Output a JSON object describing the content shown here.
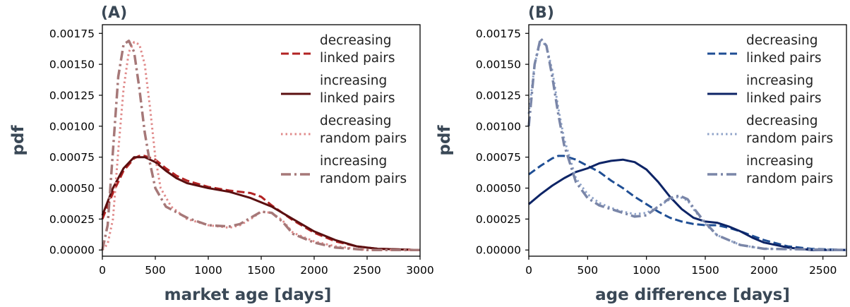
{
  "chart_data": [
    {
      "type": "line",
      "panel_label": "(A)",
      "title": "",
      "xlabel": "market age [days]",
      "ylabel": "pdf",
      "xlim": [
        0,
        3000
      ],
      "ylim": [
        -5e-05,
        0.00182
      ],
      "xticks": [
        "0",
        "500",
        "1000",
        "1500",
        "2000",
        "2500",
        "3000"
      ],
      "yticks": [
        "0.00000",
        "0.00025",
        "0.00050",
        "0.00075",
        "0.00100",
        "0.00125",
        "0.00150",
        "0.00175"
      ],
      "legend_position": "upper-right",
      "series": [
        {
          "legend_line1": "decreasing",
          "legend_line2": "linked pairs",
          "color": "#b22222",
          "dash": "dashed",
          "width": 3,
          "opacity": 1,
          "points": [
            [
              0,
              0.00025
            ],
            [
              100,
              0.00046
            ],
            [
              200,
              0.00064
            ],
            [
              300,
              0.00074
            ],
            [
              350,
              0.00076
            ],
            [
              400,
              0.00076
            ],
            [
              500,
              0.00073
            ],
            [
              600,
              0.00066
            ],
            [
              700,
              0.0006
            ],
            [
              800,
              0.00056
            ],
            [
              1000,
              0.00051
            ],
            [
              1200,
              0.00048
            ],
            [
              1400,
              0.00046
            ],
            [
              1500,
              0.00043
            ],
            [
              1600,
              0.00036
            ],
            [
              1800,
              0.00024
            ],
            [
              2000,
              0.00014
            ],
            [
              2200,
              7e-05
            ],
            [
              2400,
              3e-05
            ],
            [
              2600,
              1e-05
            ],
            [
              3000,
              0.0
            ]
          ]
        },
        {
          "legend_line1": "increasing",
          "legend_line2": "linked pairs",
          "color": "#5b0f10",
          "dash": "solid",
          "width": 3,
          "opacity": 1,
          "points": [
            [
              0,
              0.00028
            ],
            [
              100,
              0.0005
            ],
            [
              200,
              0.00066
            ],
            [
              300,
              0.00075
            ],
            [
              400,
              0.00075
            ],
            [
              500,
              0.00071
            ],
            [
              600,
              0.00064
            ],
            [
              700,
              0.00058
            ],
            [
              800,
              0.00054
            ],
            [
              1000,
              0.0005
            ],
            [
              1200,
              0.00047
            ],
            [
              1400,
              0.00042
            ],
            [
              1600,
              0.00035
            ],
            [
              1800,
              0.00025
            ],
            [
              2000,
              0.00015
            ],
            [
              2200,
              8e-05
            ],
            [
              2400,
              3e-05
            ],
            [
              2600,
              1e-05
            ],
            [
              3000,
              0.0
            ]
          ]
        },
        {
          "legend_line1": "decreasing",
          "legend_line2": "random pairs",
          "color": "#e08a8a",
          "dash": "dotted",
          "width": 3,
          "opacity": 1,
          "points": [
            [
              0,
              0.0
            ],
            [
              50,
              5e-05
            ],
            [
              100,
              0.00025
            ],
            [
              150,
              0.0008
            ],
            [
              200,
              0.0013
            ],
            [
              250,
              0.0016
            ],
            [
              300,
              0.00168
            ],
            [
              350,
              0.00166
            ],
            [
              400,
              0.0015
            ],
            [
              450,
              0.00115
            ],
            [
              500,
              0.00075
            ],
            [
              550,
              0.0005
            ],
            [
              650,
              0.00035
            ],
            [
              800,
              0.00025
            ],
            [
              1000,
              0.0002
            ],
            [
              1200,
              0.00018
            ],
            [
              1300,
              0.0002
            ],
            [
              1400,
              0.00025
            ],
            [
              1500,
              0.00031
            ],
            [
              1600,
              0.0003
            ],
            [
              1700,
              0.00024
            ],
            [
              1800,
              0.00014
            ],
            [
              2000,
              7e-05
            ],
            [
              2200,
              3e-05
            ],
            [
              2500,
              0.0
            ],
            [
              3000,
              0.0
            ]
          ]
        },
        {
          "legend_line1": "increasing",
          "legend_line2": "random pairs",
          "color": "#a67878",
          "dash": "dashdot",
          "width": 3.5,
          "opacity": 1,
          "points": [
            [
              0,
              0.0
            ],
            [
              50,
              0.0002
            ],
            [
              100,
              0.0008
            ],
            [
              150,
              0.0014
            ],
            [
              200,
              0.00166
            ],
            [
              250,
              0.00169
            ],
            [
              300,
              0.0016
            ],
            [
              350,
              0.0013
            ],
            [
              400,
              0.00095
            ],
            [
              450,
              0.0007
            ],
            [
              500,
              0.0005
            ],
            [
              600,
              0.00035
            ],
            [
              800,
              0.00026
            ],
            [
              1000,
              0.0002
            ],
            [
              1200,
              0.00019
            ],
            [
              1300,
              0.00021
            ],
            [
              1400,
              0.00026
            ],
            [
              1500,
              0.00031
            ],
            [
              1600,
              0.0003
            ],
            [
              1700,
              0.00023
            ],
            [
              1800,
              0.00013
            ],
            [
              2000,
              6e-05
            ],
            [
              2200,
              2e-05
            ],
            [
              2500,
              0.0
            ],
            [
              3000,
              0.0
            ]
          ]
        }
      ]
    },
    {
      "type": "line",
      "panel_label": "(B)",
      "title": "",
      "xlabel": "age difference [days]",
      "ylabel": "pdf",
      "xlim": [
        0,
        2700
      ],
      "ylim": [
        -5e-05,
        0.00182
      ],
      "xticks": [
        "0",
        "500",
        "1000",
        "1500",
        "2000",
        "2500"
      ],
      "yticks": [
        "0.00000",
        "0.00025",
        "0.00050",
        "0.00075",
        "0.00100",
        "0.00125",
        "0.00150",
        "0.00175"
      ],
      "legend_position": "upper-right",
      "series": [
        {
          "legend_line1": "decreasing",
          "legend_line2": "linked pairs",
          "color": "#1f4e94",
          "dash": "dashed",
          "width": 3,
          "opacity": 1,
          "points": [
            [
              0,
              0.00061
            ],
            [
              100,
              0.00068
            ],
            [
              200,
              0.00074
            ],
            [
              250,
              0.00076
            ],
            [
              300,
              0.00076
            ],
            [
              400,
              0.00073
            ],
            [
              500,
              0.00068
            ],
            [
              600,
              0.00063
            ],
            [
              700,
              0.00056
            ],
            [
              800,
              0.0005
            ],
            [
              900,
              0.00043
            ],
            [
              1000,
              0.00037
            ],
            [
              1100,
              0.00031
            ],
            [
              1200,
              0.00026
            ],
            [
              1300,
              0.00023
            ],
            [
              1400,
              0.00021
            ],
            [
              1500,
              0.0002
            ],
            [
              1600,
              0.0002
            ],
            [
              1700,
              0.00018
            ],
            [
              1800,
              0.00015
            ],
            [
              2000,
              8e-05
            ],
            [
              2200,
              3e-05
            ],
            [
              2400,
              1e-05
            ],
            [
              2700,
              0.0
            ]
          ]
        },
        {
          "legend_line1": "increasing",
          "legend_line2": "linked pairs",
          "color": "#0d2466",
          "dash": "solid",
          "width": 3,
          "opacity": 1,
          "points": [
            [
              0,
              0.00037
            ],
            [
              100,
              0.00045
            ],
            [
              200,
              0.00052
            ],
            [
              300,
              0.00058
            ],
            [
              400,
              0.00063
            ],
            [
              500,
              0.00066
            ],
            [
              600,
              0.0007
            ],
            [
              700,
              0.00072
            ],
            [
              800,
              0.00073
            ],
            [
              900,
              0.00071
            ],
            [
              1000,
              0.00065
            ],
            [
              1100,
              0.00055
            ],
            [
              1200,
              0.00043
            ],
            [
              1300,
              0.00033
            ],
            [
              1400,
              0.00026
            ],
            [
              1500,
              0.00023
            ],
            [
              1600,
              0.00022
            ],
            [
              1700,
              0.00019
            ],
            [
              1800,
              0.00015
            ],
            [
              1900,
              0.0001
            ],
            [
              2000,
              6e-05
            ],
            [
              2200,
              2e-05
            ],
            [
              2400,
              0.0
            ],
            [
              2700,
              0.0
            ]
          ]
        },
        {
          "legend_line1": "decreasing",
          "legend_line2": "random pairs",
          "color": "#8fa3c8",
          "dash": "dotted",
          "width": 3,
          "opacity": 1,
          "points": [
            [
              0,
              0.0011
            ],
            [
              50,
              0.0015
            ],
            [
              100,
              0.00169
            ],
            [
              150,
              0.00165
            ],
            [
              200,
              0.00145
            ],
            [
              250,
              0.00115
            ],
            [
              300,
              0.0009
            ],
            [
              400,
              0.00058
            ],
            [
              500,
              0.00045
            ],
            [
              600,
              0.00038
            ],
            [
              700,
              0.00034
            ],
            [
              800,
              0.00031
            ],
            [
              900,
              0.00029
            ],
            [
              1000,
              0.0003
            ],
            [
              1100,
              0.00035
            ],
            [
              1200,
              0.00041
            ],
            [
              1280,
              0.00043
            ],
            [
              1350,
              0.0004
            ],
            [
              1400,
              0.00033
            ],
            [
              1500,
              0.00021
            ],
            [
              1600,
              0.00012
            ],
            [
              1800,
              4e-05
            ],
            [
              2000,
              1e-05
            ],
            [
              2700,
              0.0
            ]
          ]
        },
        {
          "legend_line1": "increasing",
          "legend_line2": "random pairs",
          "color": "#7a86a8",
          "dash": "dashdot",
          "width": 3.5,
          "opacity": 1,
          "points": [
            [
              0,
              0.001
            ],
            [
              50,
              0.0015
            ],
            [
              100,
              0.00171
            ],
            [
              150,
              0.00165
            ],
            [
              200,
              0.0014
            ],
            [
              250,
              0.0011
            ],
            [
              300,
              0.00085
            ],
            [
              400,
              0.00055
            ],
            [
              500,
              0.00042
            ],
            [
              600,
              0.00036
            ],
            [
              700,
              0.00033
            ],
            [
              800,
              0.0003
            ],
            [
              900,
              0.00027
            ],
            [
              1000,
              0.00028
            ],
            [
              1100,
              0.00035
            ],
            [
              1200,
              0.00042
            ],
            [
              1280,
              0.00044
            ],
            [
              1350,
              0.00041
            ],
            [
              1400,
              0.00034
            ],
            [
              1500,
              0.00022
            ],
            [
              1600,
              0.00012
            ],
            [
              1800,
              4e-05
            ],
            [
              2000,
              1e-05
            ],
            [
              2700,
              0.0
            ]
          ]
        }
      ]
    }
  ]
}
